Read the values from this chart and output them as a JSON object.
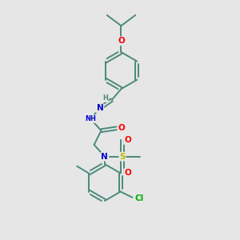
{
  "bg_color": "#e6e6e6",
  "bond_color": "#4a8a7a",
  "bond_width": 1.4,
  "atom_colors": {
    "O": "#ff0000",
    "N": "#0000cc",
    "S": "#bbbb00",
    "Cl": "#00aa00",
    "H": "#4a8a7a",
    "C": "#4a8a7a"
  },
  "font_size_atom": 7.5,
  "font_size_small": 6.0
}
